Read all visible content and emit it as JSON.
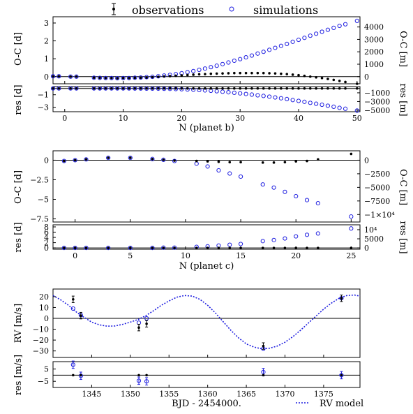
{
  "legend": {
    "observations": "observations",
    "simulations": "simulations",
    "rv_model": "RV model"
  },
  "colors": {
    "simulation": "#1f1fe0",
    "observation": "#000000",
    "model": "#1f1fe0"
  },
  "chart_data": [
    {
      "id": "planet_b",
      "type": "scatter",
      "xlabel": "N (planet b)",
      "xlim": [
        -2,
        50.5
      ],
      "xticks": [
        "0",
        "10",
        "20",
        "30",
        "40",
        "50"
      ],
      "main": {
        "ylabel_left": "O-C [d]",
        "ylabel_right": "O-C [m]",
        "ylim": [
          -0.4,
          3.35
        ],
        "yticks_left": [
          "0",
          "1",
          "2",
          "3"
        ],
        "yticks_right": [
          "0",
          "1000",
          "2000",
          "3000",
          "4000"
        ],
        "right_scale_per_day": 1440,
        "observations": {
          "x": [
            -2,
            -1,
            1,
            2,
            5,
            6,
            7,
            8,
            9,
            10,
            11,
            12,
            13,
            14,
            15,
            16,
            17,
            18,
            19,
            20,
            21,
            22,
            23,
            24,
            25,
            26,
            27,
            28,
            29,
            30,
            31,
            32,
            33,
            34,
            35,
            36,
            37,
            38,
            39,
            40,
            41,
            42,
            43,
            44,
            45,
            46,
            47,
            48,
            50
          ],
          "y": [
            0.02,
            0.02,
            0,
            0,
            -0.06,
            -0.07,
            -0.08,
            -0.08,
            -0.09,
            -0.08,
            -0.08,
            -0.07,
            -0.06,
            -0.05,
            -0.03,
            -0.01,
            0.01,
            0.03,
            0.05,
            0.07,
            0.09,
            0.11,
            0.13,
            0.14,
            0.16,
            0.17,
            0.18,
            0.19,
            0.2,
            0.2,
            0.2,
            0.2,
            0.2,
            0.2,
            0.19,
            0.18,
            0.16,
            0.14,
            0.11,
            0.08,
            0.04,
            0,
            -0.04,
            -0.08,
            -0.13,
            -0.18,
            -0.24,
            -0.3,
            -0.4
          ]
        },
        "simulations": {
          "x": [
            -2,
            -1,
            1,
            2,
            5,
            6,
            7,
            8,
            9,
            10,
            11,
            12,
            13,
            14,
            15,
            16,
            17,
            18,
            19,
            20,
            21,
            22,
            23,
            24,
            25,
            26,
            27,
            28,
            29,
            30,
            31,
            32,
            33,
            34,
            35,
            36,
            37,
            38,
            39,
            40,
            41,
            42,
            43,
            44,
            45,
            46,
            47,
            48,
            50
          ],
          "y": [
            0.02,
            0.02,
            0,
            0,
            -0.06,
            -0.07,
            -0.08,
            -0.08,
            -0.09,
            -0.08,
            -0.08,
            -0.06,
            -0.05,
            -0.03,
            -0.01,
            0.02,
            0.06,
            0.1,
            0.14,
            0.19,
            0.25,
            0.31,
            0.38,
            0.45,
            0.53,
            0.61,
            0.7,
            0.79,
            0.89,
            0.98,
            1.08,
            1.18,
            1.29,
            1.39,
            1.5,
            1.61,
            1.72,
            1.83,
            1.95,
            2.06,
            2.17,
            2.29,
            2.4,
            2.51,
            2.62,
            2.73,
            2.84,
            2.93,
            3.12
          ]
        }
      },
      "residual": {
        "ylabel_left": "res [d]",
        "ylabel_right": "res [m]",
        "ylim": [
          -3.7,
          0.3
        ],
        "yticks_left": [
          "−1",
          "−3"
        ],
        "ytick_values_left": [
          -1,
          -3
        ],
        "yticks_right": [
          "−1000",
          "−3000",
          "−5000"
        ],
        "ytick_values_right": [
          -1000,
          -3000,
          -5000
        ],
        "right_scale_per_day": 1440,
        "observations_y": 0,
        "simulations_y": [
          0,
          0,
          0,
          0,
          0,
          0,
          0,
          0,
          0,
          0,
          0,
          -0.01,
          -0.01,
          -0.02,
          -0.02,
          -0.03,
          -0.05,
          -0.07,
          -0.09,
          -0.12,
          -0.16,
          -0.2,
          -0.25,
          -0.31,
          -0.37,
          -0.44,
          -0.52,
          -0.6,
          -0.69,
          -0.78,
          -0.88,
          -0.98,
          -1.09,
          -1.19,
          -1.31,
          -1.43,
          -1.56,
          -1.69,
          -1.84,
          -1.98,
          -2.13,
          -2.29,
          -2.44,
          -2.59,
          -2.75,
          -2.91,
          -3.08,
          -3.23,
          -3.52
        ]
      }
    },
    {
      "id": "planet_c",
      "type": "scatter",
      "xlabel": "N (planet c)",
      "xlim": [
        -2,
        25.8
      ],
      "xticks": [
        "0",
        "5",
        "10",
        "15",
        "20",
        "25"
      ],
      "main": {
        "ylabel_left": "O-C [d]",
        "ylabel_right": "O-C [m]",
        "ylim": [
          -7.9,
          1.2
        ],
        "yticks_left": [
          "0",
          "−2.5",
          "−5",
          "−7.5"
        ],
        "ytick_values_left": [
          0,
          -2.5,
          -5,
          -7.5
        ],
        "yticks_right": [
          "0",
          "−2500",
          "−5000",
          "−7500",
          "−1×10⁴"
        ],
        "ytick_values_right": [
          0,
          -2500,
          -5000,
          -7500,
          -10000
        ],
        "right_scale_per_day": 1440,
        "observations": {
          "x": [
            -1,
            0,
            1,
            3,
            5,
            7,
            8,
            9,
            11,
            12,
            13,
            14,
            15,
            17,
            18,
            19,
            20,
            21,
            22,
            25
          ],
          "y": [
            -0.1,
            0,
            0.1,
            0.3,
            0.3,
            0.15,
            0.05,
            -0.05,
            -0.1,
            -0.15,
            -0.2,
            -0.25,
            -0.25,
            -0.3,
            -0.3,
            -0.25,
            -0.15,
            -0.1,
            0.1,
            0.8
          ]
        },
        "simulations": {
          "x": [
            -1,
            0,
            1,
            3,
            5,
            7,
            8,
            9,
            11,
            12,
            13,
            14,
            15,
            17,
            18,
            19,
            20,
            21,
            22,
            25
          ],
          "y": [
            -0.1,
            0,
            0.1,
            0.3,
            0.3,
            0.15,
            0.05,
            -0.1,
            -0.45,
            -0.8,
            -1.3,
            -1.7,
            -2.1,
            -3.1,
            -3.5,
            -4.05,
            -4.6,
            -5.1,
            -5.5,
            -7.2
          ]
        }
      },
      "residual": {
        "ylabel_left": "res [d]",
        "ylabel_right": "res [m]",
        "ylim": [
          -0.5,
          8.8
        ],
        "yticks_left": [
          "0",
          "2",
          "4",
          "6",
          "8"
        ],
        "ytick_values_left": [
          0,
          2,
          4,
          6,
          8
        ],
        "yticks_right": [
          "0",
          "5000",
          "10⁴"
        ],
        "ytick_values_right": [
          0,
          5000,
          10000
        ],
        "right_scale_per_day": 1440,
        "observations_y": 0,
        "simulations_y": [
          0,
          0,
          0,
          0,
          0,
          0,
          0.1,
          0.1,
          0.4,
          0.6,
          0.9,
          1.2,
          1.5,
          2.6,
          3,
          3.6,
          4.4,
          5,
          5.5,
          7.4
        ]
      }
    },
    {
      "id": "rv",
      "type": "scatter",
      "xlabel": "BJD - 2454000.",
      "xlim": [
        1340,
        1379.7
      ],
      "xticks": [
        "1345",
        "1350",
        "1355",
        "1360",
        "1365",
        "1370",
        "1375"
      ],
      "main": {
        "ylabel_left": "RV [m/s]",
        "ylim": [
          -36,
          27
        ],
        "yticks_left": [
          "20",
          "10",
          "0",
          "−10",
          "−20",
          "−30"
        ],
        "ytick_values_left": [
          20,
          10,
          0,
          -10,
          -20,
          -30
        ],
        "observations": {
          "x": [
            1342.6,
            1343.6,
            1351.1,
            1352.1,
            1367.2,
            1377.3
          ],
          "y": [
            17.5,
            2.5,
            -8.5,
            -5,
            -25.5,
            18.5
          ],
          "err": [
            3,
            3,
            3,
            3,
            3,
            3
          ]
        },
        "simulations": {
          "x": [
            1342.6,
            1343.6,
            1351.1,
            1352.1,
            1367.2,
            1377.3
          ],
          "y": [
            9,
            3,
            -4,
            0,
            -28,
            18.5
          ]
        },
        "model": {
          "x": [
            1340,
            1341,
            1342,
            1343,
            1344,
            1345,
            1346,
            1347,
            1348,
            1349,
            1350,
            1351,
            1352,
            1353,
            1354,
            1355,
            1356,
            1357,
            1358,
            1359,
            1360,
            1361,
            1362,
            1363,
            1364,
            1365,
            1366,
            1367,
            1368,
            1369,
            1370,
            1371,
            1372,
            1373,
            1374,
            1375,
            1376,
            1377,
            1378,
            1379,
            1379.7
          ],
          "y": [
            21,
            17,
            12,
            6,
            1,
            -3.5,
            -6,
            -7.2,
            -7,
            -5.5,
            -3.5,
            -1,
            2.5,
            7,
            12,
            16,
            19.5,
            21,
            20.5,
            17.5,
            12,
            5,
            -3,
            -11,
            -18,
            -23.5,
            -26.5,
            -28,
            -27.5,
            -25.5,
            -22,
            -17,
            -11,
            -4.5,
            2,
            8.5,
            14,
            18.5,
            21,
            21.5,
            20.5
          ]
        }
      },
      "residual": {
        "ylabel_left": "res [m/s]",
        "ylim": [
          -10,
          11
        ],
        "yticks_left": [
          "5",
          "−5"
        ],
        "ytick_values_left": [
          5,
          -5
        ],
        "observations_y": 0,
        "simulations_y": [
          8.5,
          -0.5,
          -4.5,
          -5,
          2.5,
          0
        ],
        "simulations_err": [
          3,
          3,
          3,
          3,
          3,
          3
        ]
      }
    }
  ]
}
